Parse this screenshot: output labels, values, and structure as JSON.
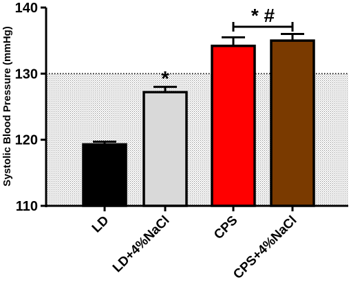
{
  "chart_data": {
    "type": "bar",
    "categories": [
      "LD",
      "LD+4%NaCl",
      "CPS",
      "CPS+4%NaCl"
    ],
    "values": [
      119.3,
      127.2,
      134.2,
      135.0
    ],
    "errors": [
      0.4,
      0.8,
      1.3,
      1.0
    ],
    "bar_colors": [
      "#000000",
      "#d9d9d9",
      "#ff0000",
      "#7a3a00"
    ],
    "ylabel": "Systolic Blood Pressure (mmHg)",
    "xlabel": "",
    "ylim": [
      110,
      140
    ],
    "yticks": [
      110,
      120,
      130,
      140
    ],
    "reference_band": {
      "from": 110,
      "to": 130,
      "style": "dotted-shaded"
    },
    "annotations": [
      {
        "text": "*",
        "category": "LD+4%NaCl"
      },
      {
        "text": "* #",
        "categories": [
          "CPS",
          "CPS+4%NaCl"
        ]
      }
    ],
    "grid": false,
    "legend": "none"
  }
}
